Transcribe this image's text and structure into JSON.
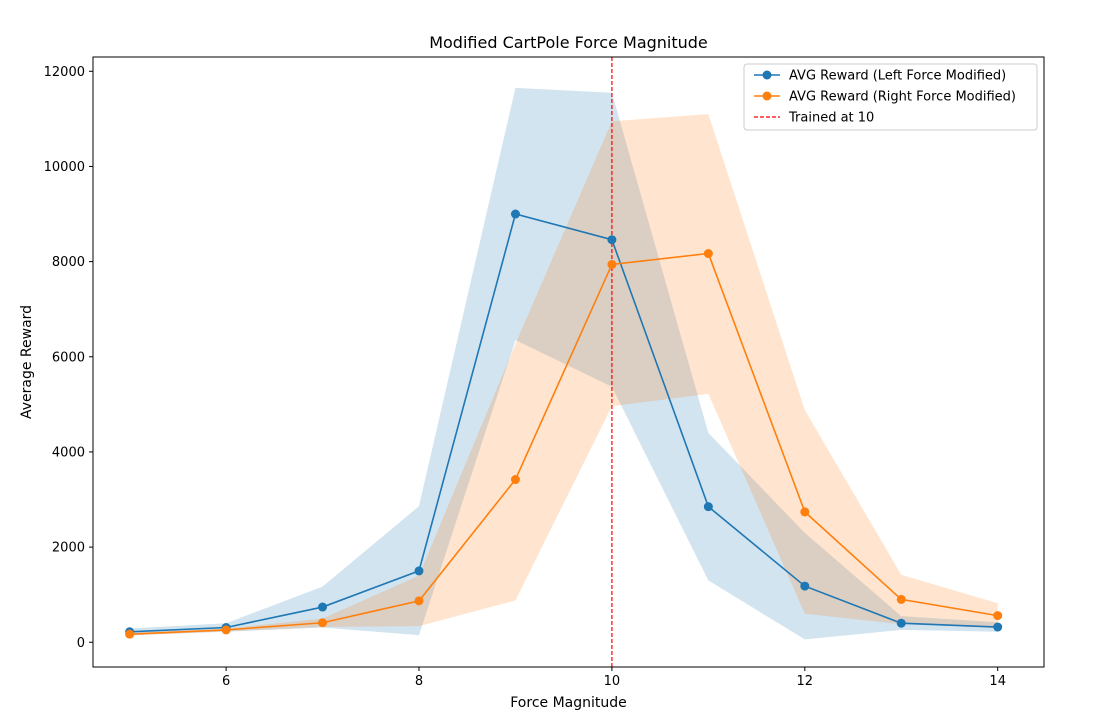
{
  "chart_data": {
    "type": "line",
    "title": "Modified CartPole Force Magnitude",
    "xlabel": "Force Magnitude",
    "ylabel": "Average Reward",
    "xlim": [
      4.62,
      14.48
    ],
    "ylim": [
      -520,
      12300
    ],
    "xticks": [
      6,
      8,
      10,
      12,
      14
    ],
    "yticks": [
      0,
      2000,
      4000,
      6000,
      8000,
      10000,
      12000
    ],
    "x": [
      5,
      6,
      7,
      8,
      9,
      10,
      11,
      12,
      13,
      14
    ],
    "grid": false,
    "legend_position": "top-right",
    "series": [
      {
        "name": "AVG Reward (Left Force Modified)",
        "color": "#1f77b4",
        "values": [
          220,
          310,
          740,
          1500,
          9000,
          8460,
          2850,
          1180,
          400,
          320
        ],
        "band_upper": [
          290,
          400,
          1170,
          2860,
          11650,
          11550,
          4400,
          2300,
          550,
          420
        ],
        "band_lower": [
          150,
          220,
          310,
          150,
          6350,
          5370,
          1300,
          60,
          260,
          220
        ]
      },
      {
        "name": "AVG Reward (Right Force Modified)",
        "color": "#ff7f0e",
        "values": [
          170,
          260,
          410,
          870,
          3420,
          7940,
          8170,
          2740,
          900,
          560
        ],
        "band_upper": [
          200,
          290,
          500,
          1400,
          6270,
          10950,
          11100,
          4880,
          1420,
          820
        ],
        "band_lower": [
          140,
          230,
          320,
          340,
          880,
          4960,
          5220,
          600,
          380,
          300
        ]
      }
    ],
    "reference_line": {
      "x": 10,
      "label": "Trained at 10",
      "color": "#ff0000",
      "style": "dashed"
    }
  }
}
